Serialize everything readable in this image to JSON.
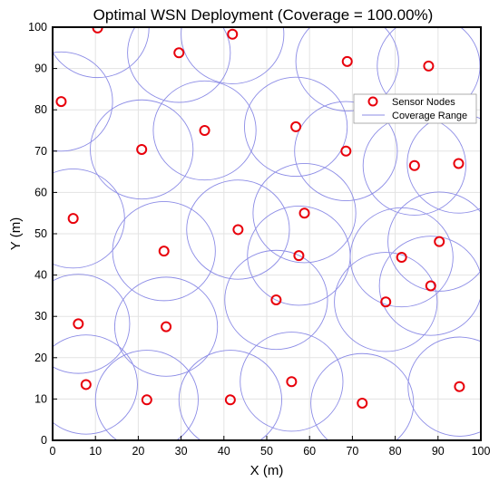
{
  "chart_data": {
    "type": "scatter",
    "title": "Optimal WSN Deployment (Coverage = 100.00%)",
    "xlabel": "X (m)",
    "ylabel": "Y (m)",
    "xlim": [
      0,
      100
    ],
    "ylim": [
      0,
      100
    ],
    "xticks": [
      0,
      10,
      20,
      30,
      40,
      50,
      60,
      70,
      80,
      90,
      100
    ],
    "yticks": [
      0,
      10,
      20,
      30,
      40,
      50,
      60,
      70,
      80,
      90,
      100
    ],
    "grid": true,
    "legend_position": "top-right",
    "coverage_radius": 12,
    "series": [
      {
        "name": "Sensor Nodes",
        "marker": "circle",
        "color": "#e8000b",
        "points": [
          [
            10.5,
            99.8
          ],
          [
            29.5,
            93.8
          ],
          [
            42.0,
            98.3
          ],
          [
            68.8,
            91.7
          ],
          [
            87.8,
            90.6
          ],
          [
            2.0,
            82.0
          ],
          [
            35.5,
            75.0
          ],
          [
            56.8,
            75.9
          ],
          [
            20.8,
            70.4
          ],
          [
            68.5,
            70.0
          ],
          [
            84.5,
            66.5
          ],
          [
            94.8,
            67.0
          ],
          [
            4.8,
            53.7
          ],
          [
            58.8,
            55.0
          ],
          [
            43.3,
            51.0
          ],
          [
            26.0,
            45.8
          ],
          [
            57.5,
            44.7
          ],
          [
            81.5,
            44.3
          ],
          [
            90.3,
            48.1
          ],
          [
            88.3,
            37.4
          ],
          [
            52.2,
            34.0
          ],
          [
            77.8,
            33.5
          ],
          [
            6.0,
            28.2
          ],
          [
            26.5,
            27.5
          ],
          [
            7.8,
            13.5
          ],
          [
            22.0,
            9.8
          ],
          [
            41.5,
            9.8
          ],
          [
            55.8,
            14.2
          ],
          [
            72.3,
            9.0
          ],
          [
            95.0,
            13.0
          ]
        ]
      },
      {
        "name": "Coverage Range",
        "marker": "line",
        "color": "#8c8ce6"
      }
    ]
  }
}
